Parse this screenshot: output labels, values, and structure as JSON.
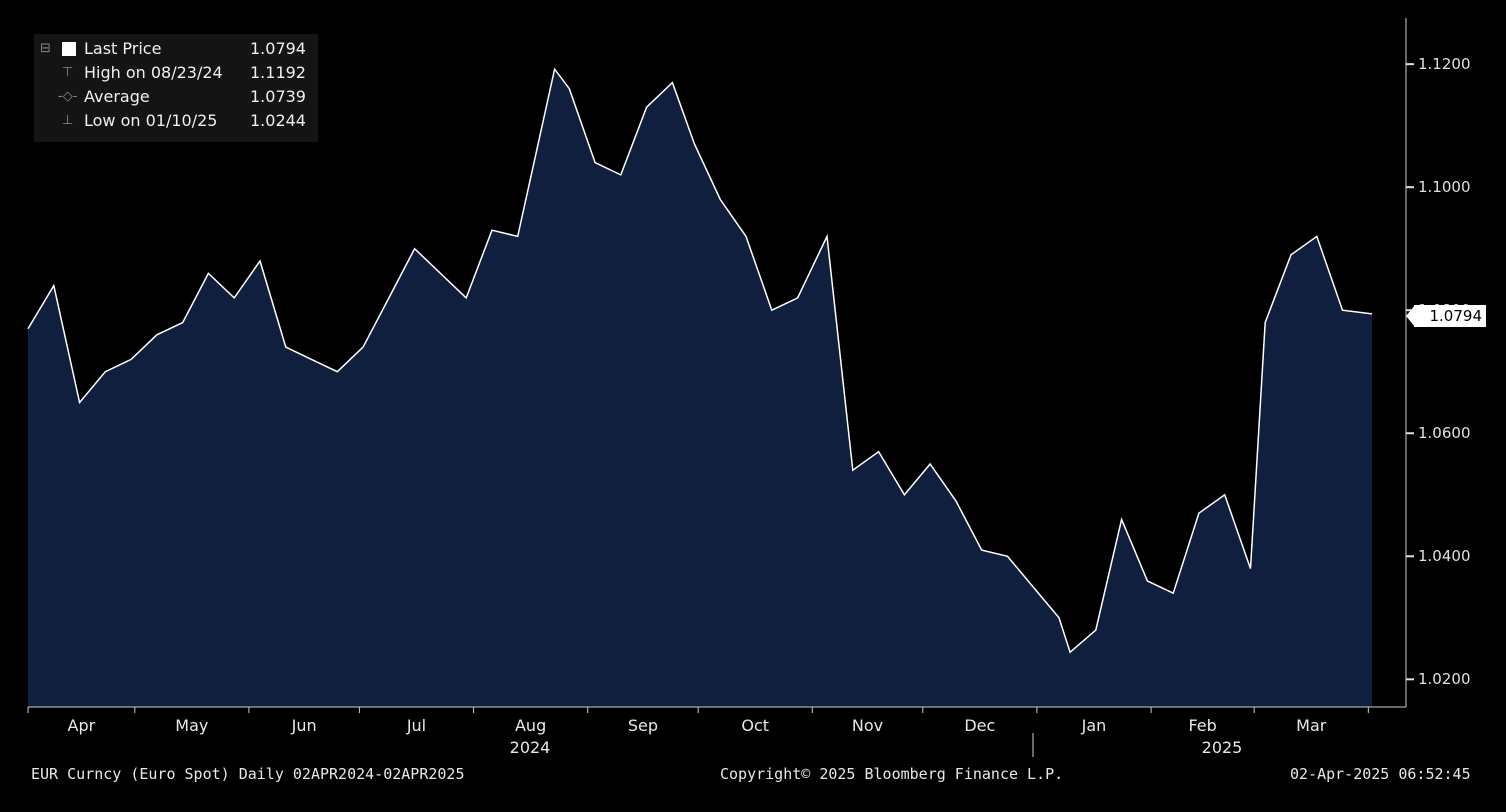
{
  "legend": {
    "last_label": "Last Price",
    "last_value": "1.0794",
    "high_label": "High on 08/23/24",
    "high_value": "1.1192",
    "avg_label": "Average",
    "avg_value": "1.0739",
    "low_label": "Low on 01/10/25",
    "low_value": "1.0244"
  },
  "last_price_tag": "1.0794",
  "footer": {
    "left": "EUR Curncy (Euro Spot)  Daily 02APR2024-02APR2025",
    "center": "Copyright© 2025 Bloomberg Finance L.P.",
    "right": "02-Apr-2025 06:52:45"
  },
  "colors": {
    "background": "#000000",
    "area_fill": "#0f1f3d",
    "line": "#ffffff"
  },
  "chart_data": {
    "type": "area",
    "ylim": [
      1.0155,
      1.1275
    ],
    "y_ticks": [
      "1.0200",
      "1.0400",
      "1.0600",
      "1.0800",
      "1.1000",
      "1.1200"
    ],
    "y_tick_values": [
      1.02,
      1.04,
      1.06,
      1.08,
      1.1,
      1.12
    ],
    "x_month_labels": [
      "Apr",
      "May",
      "Jun",
      "Jul",
      "Aug",
      "Sep",
      "Oct",
      "Nov",
      "Dec",
      "Jan",
      "Feb",
      "Mar"
    ],
    "x_year_labels": [
      "2024",
      "2025"
    ],
    "grid": false,
    "legend_position": "top-left",
    "series": [
      {
        "name": "Last Price",
        "x": [
          "2024-04-02",
          "2024-04-09",
          "2024-04-16",
          "2024-04-23",
          "2024-04-30",
          "2024-05-07",
          "2024-05-14",
          "2024-05-21",
          "2024-05-28",
          "2024-06-04",
          "2024-06-11",
          "2024-06-18",
          "2024-06-25",
          "2024-07-02",
          "2024-07-09",
          "2024-07-16",
          "2024-07-23",
          "2024-07-30",
          "2024-08-06",
          "2024-08-13",
          "2024-08-20",
          "2024-08-23",
          "2024-08-27",
          "2024-09-03",
          "2024-09-10",
          "2024-09-17",
          "2024-09-24",
          "2024-09-30",
          "2024-10-07",
          "2024-10-14",
          "2024-10-21",
          "2024-10-28",
          "2024-11-05",
          "2024-11-12",
          "2024-11-19",
          "2024-11-26",
          "2024-12-03",
          "2024-12-10",
          "2024-12-17",
          "2024-12-24",
          "2024-12-31",
          "2025-01-07",
          "2025-01-10",
          "2025-01-17",
          "2025-01-24",
          "2025-01-31",
          "2025-02-07",
          "2025-02-14",
          "2025-02-21",
          "2025-02-28",
          "2025-03-04",
          "2025-03-11",
          "2025-03-18",
          "2025-03-25",
          "2025-04-02"
        ],
        "y": [
          1.077,
          1.084,
          1.065,
          1.07,
          1.072,
          1.076,
          1.078,
          1.086,
          1.082,
          1.088,
          1.074,
          1.072,
          1.07,
          1.074,
          1.082,
          1.09,
          1.086,
          1.082,
          1.093,
          1.092,
          1.111,
          1.1192,
          1.116,
          1.104,
          1.102,
          1.113,
          1.117,
          1.107,
          1.098,
          1.092,
          1.08,
          1.082,
          1.092,
          1.054,
          1.057,
          1.05,
          1.055,
          1.049,
          1.041,
          1.04,
          1.035,
          1.03,
          1.0244,
          1.028,
          1.046,
          1.036,
          1.034,
          1.047,
          1.05,
          1.038,
          1.078,
          1.089,
          1.092,
          1.08,
          1.0794
        ]
      }
    ]
  }
}
